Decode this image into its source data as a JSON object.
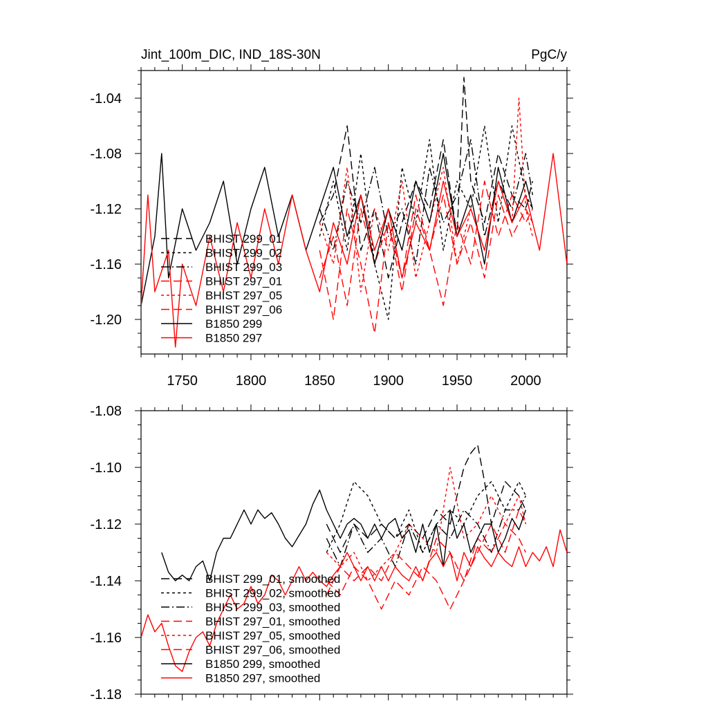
{
  "colors": {
    "black": "#000000",
    "red": "#ff0000",
    "background": "#ffffff"
  },
  "chart_data": [
    {
      "type": "line",
      "title": "Jint_100m_DIC, IND_18S-30N",
      "units_label": "PgC/y",
      "xlabel": "",
      "ylabel": "",
      "xlim": [
        1720,
        2030
      ],
      "ylim": [
        -1.225,
        -1.02
      ],
      "xticks": [
        1750,
        1800,
        1850,
        1900,
        1950,
        2000
      ],
      "xtick_labels": [
        "1750",
        "1800",
        "1850",
        "1900",
        "1950",
        "2000"
      ],
      "yticks": [
        -1.04,
        -1.08,
        -1.12,
        -1.16,
        -1.2
      ],
      "ytick_labels": [
        "-1.04",
        "-1.08",
        "-1.12",
        "-1.16",
        "-1.20"
      ],
      "legend_position": "bottom-left",
      "series": [
        {
          "name": "BHIST 299_01",
          "color": "#000000",
          "dash": "long-dash",
          "x": [
            1850,
            1860,
            1870,
            1880,
            1890,
            1900,
            1910,
            1920,
            1930,
            1940,
            1950,
            1955,
            1960,
            1970,
            1980,
            1990,
            2000,
            2005
          ],
          "y": [
            -1.13,
            -1.11,
            -1.06,
            -1.15,
            -1.12,
            -1.17,
            -1.13,
            -1.1,
            -1.12,
            -1.07,
            -1.14,
            -1.025,
            -1.1,
            -1.13,
            -1.08,
            -1.11,
            -1.12,
            -1.1
          ]
        },
        {
          "name": "BHIST 299_02",
          "color": "#000000",
          "dash": "short-dash",
          "x": [
            1850,
            1860,
            1870,
            1880,
            1890,
            1900,
            1910,
            1920,
            1930,
            1940,
            1950,
            1960,
            1970,
            1980,
            1990,
            2000,
            2005
          ],
          "y": [
            -1.14,
            -1.1,
            -1.15,
            -1.08,
            -1.16,
            -1.2,
            -1.09,
            -1.13,
            -1.07,
            -1.15,
            -1.1,
            -1.12,
            -1.06,
            -1.13,
            -1.06,
            -1.11,
            -1.12
          ]
        },
        {
          "name": "BHIST 299_03",
          "color": "#000000",
          "dash": "dash-dot",
          "x": [
            1850,
            1860,
            1870,
            1880,
            1890,
            1900,
            1910,
            1920,
            1930,
            1940,
            1950,
            1960,
            1970,
            1980,
            1990,
            2000,
            2005
          ],
          "y": [
            -1.12,
            -1.15,
            -1.1,
            -1.13,
            -1.09,
            -1.14,
            -1.12,
            -1.16,
            -1.09,
            -1.13,
            -1.11,
            -1.07,
            -1.14,
            -1.1,
            -1.12,
            -1.08,
            -1.11
          ]
        },
        {
          "name": "BHIST 297_01",
          "color": "#ff0000",
          "dash": "long-dash",
          "x": [
            1850,
            1860,
            1870,
            1880,
            1890,
            1900,
            1910,
            1920,
            1930,
            1940,
            1950,
            1960,
            1970,
            1980,
            1990,
            2000,
            2005
          ],
          "y": [
            -1.15,
            -1.2,
            -1.12,
            -1.16,
            -1.21,
            -1.13,
            -1.17,
            -1.11,
            -1.15,
            -1.19,
            -1.13,
            -1.16,
            -1.1,
            -1.14,
            -1.11,
            -1.13,
            -1.12
          ]
        },
        {
          "name": "BHIST 297_05",
          "color": "#ff0000",
          "dash": "short-dash",
          "x": [
            1850,
            1860,
            1870,
            1880,
            1890,
            1900,
            1910,
            1920,
            1930,
            1940,
            1950,
            1960,
            1970,
            1980,
            1990,
            1995,
            2000,
            2005
          ],
          "y": [
            -1.13,
            -1.16,
            -1.09,
            -1.18,
            -1.12,
            -1.15,
            -1.1,
            -1.17,
            -1.13,
            -1.09,
            -1.16,
            -1.12,
            -1.15,
            -1.1,
            -1.13,
            -1.04,
            -1.12,
            -1.14
          ]
        },
        {
          "name": "BHIST 297_06",
          "color": "#ff0000",
          "dash": "long-dash",
          "x": [
            1850,
            1860,
            1870,
            1880,
            1890,
            1900,
            1910,
            1920,
            1930,
            1940,
            1950,
            1960,
            1970,
            1980,
            1990,
            2000,
            2005
          ],
          "y": [
            -1.17,
            -1.14,
            -1.19,
            -1.12,
            -1.16,
            -1.13,
            -1.18,
            -1.12,
            -1.15,
            -1.11,
            -1.16,
            -1.13,
            -1.17,
            -1.11,
            -1.14,
            -1.12,
            -1.13
          ]
        },
        {
          "name": "B1850 299",
          "color": "#000000",
          "dash": "solid",
          "x": [
            1720,
            1730,
            1735,
            1740,
            1750,
            1760,
            1770,
            1780,
            1790,
            1800,
            1810,
            1820,
            1830,
            1840,
            1850,
            1860,
            1870,
            1880,
            1890,
            1900,
            1910,
            1920,
            1930,
            1940,
            1950,
            1960,
            1970,
            1980,
            1990,
            2000,
            2005
          ],
          "y": [
            -1.19,
            -1.14,
            -1.08,
            -1.17,
            -1.12,
            -1.15,
            -1.13,
            -1.1,
            -1.16,
            -1.12,
            -1.09,
            -1.14,
            -1.11,
            -1.15,
            -1.12,
            -1.09,
            -1.14,
            -1.11,
            -1.16,
            -1.12,
            -1.15,
            -1.1,
            -1.13,
            -1.08,
            -1.14,
            -1.11,
            -1.16,
            -1.09,
            -1.13,
            -1.1,
            -1.12
          ]
        },
        {
          "name": "B1850 297",
          "color": "#ff0000",
          "dash": "solid",
          "x": [
            1720,
            1725,
            1730,
            1740,
            1745,
            1750,
            1760,
            1770,
            1780,
            1790,
            1800,
            1810,
            1820,
            1830,
            1840,
            1850,
            1860,
            1870,
            1880,
            1890,
            1900,
            1910,
            1920,
            1930,
            1940,
            1950,
            1960,
            1970,
            1980,
            1990,
            2000,
            2010,
            2020,
            2025,
            2030
          ],
          "y": [
            -1.19,
            -1.11,
            -1.18,
            -1.15,
            -1.22,
            -1.16,
            -1.19,
            -1.14,
            -1.18,
            -1.13,
            -1.17,
            -1.12,
            -1.16,
            -1.11,
            -1.15,
            -1.18,
            -1.13,
            -1.16,
            -1.11,
            -1.15,
            -1.12,
            -1.17,
            -1.13,
            -1.15,
            -1.1,
            -1.14,
            -1.12,
            -1.15,
            -1.1,
            -1.13,
            -1.11,
            -1.15,
            -1.08,
            -1.12,
            -1.16
          ]
        }
      ]
    },
    {
      "type": "line",
      "title": "",
      "xlabel": "",
      "ylabel": "",
      "xlim": [
        1720,
        2030
      ],
      "ylim": [
        -1.18,
        -1.08
      ],
      "yticks": [
        -1.08,
        -1.1,
        -1.12,
        -1.14,
        -1.16,
        -1.18
      ],
      "ytick_labels": [
        "-1.08",
        "-1.10",
        "-1.12",
        "-1.14",
        "-1.16",
        "-1.18"
      ],
      "legend_position": "bottom-left",
      "series": [
        {
          "name": "BHIST 299_01, smoothed",
          "color": "#000000",
          "dash": "long-dash",
          "x": [
            1855,
            1865,
            1875,
            1885,
            1895,
            1905,
            1915,
            1925,
            1935,
            1945,
            1955,
            1960,
            1965,
            1970,
            1975,
            1985,
            1995,
            2000
          ],
          "y": [
            -1.12,
            -1.13,
            -1.12,
            -1.125,
            -1.12,
            -1.125,
            -1.12,
            -1.125,
            -1.115,
            -1.12,
            -1.1,
            -1.095,
            -1.092,
            -1.105,
            -1.12,
            -1.105,
            -1.11,
            -1.115
          ]
        },
        {
          "name": "BHIST 299_02, smoothed",
          "color": "#000000",
          "dash": "short-dash",
          "x": [
            1855,
            1865,
            1875,
            1885,
            1895,
            1905,
            1915,
            1925,
            1935,
            1945,
            1955,
            1965,
            1975,
            1985,
            1995,
            2000
          ],
          "y": [
            -1.13,
            -1.12,
            -1.105,
            -1.11,
            -1.12,
            -1.125,
            -1.115,
            -1.13,
            -1.12,
            -1.115,
            -1.12,
            -1.11,
            -1.105,
            -1.115,
            -1.105,
            -1.11
          ]
        },
        {
          "name": "BHIST 299_03, smoothed",
          "color": "#000000",
          "dash": "dash-dot",
          "x": [
            1855,
            1865,
            1875,
            1885,
            1895,
            1905,
            1915,
            1925,
            1935,
            1945,
            1955,
            1965,
            1975,
            1985,
            1995,
            2000
          ],
          "y": [
            -1.125,
            -1.135,
            -1.12,
            -1.13,
            -1.125,
            -1.135,
            -1.12,
            -1.13,
            -1.12,
            -1.125,
            -1.115,
            -1.12,
            -1.13,
            -1.115,
            -1.115,
            -1.11
          ]
        },
        {
          "name": "BHIST 297_01, smoothed",
          "color": "#ff0000",
          "dash": "long-dash",
          "x": [
            1855,
            1865,
            1875,
            1885,
            1895,
            1905,
            1915,
            1925,
            1935,
            1945,
            1955,
            1965,
            1975,
            1985,
            1995,
            2000
          ],
          "y": [
            -1.14,
            -1.145,
            -1.135,
            -1.14,
            -1.15,
            -1.14,
            -1.145,
            -1.135,
            -1.14,
            -1.15,
            -1.14,
            -1.13,
            -1.12,
            -1.13,
            -1.115,
            -1.12
          ]
        },
        {
          "name": "BHIST 297_05, smoothed",
          "color": "#ff0000",
          "dash": "short-dash",
          "x": [
            1855,
            1865,
            1875,
            1885,
            1895,
            1905,
            1915,
            1925,
            1935,
            1945,
            1955,
            1965,
            1975,
            1985,
            1995,
            2000
          ],
          "y": [
            -1.13,
            -1.135,
            -1.13,
            -1.14,
            -1.135,
            -1.13,
            -1.12,
            -1.125,
            -1.13,
            -1.1,
            -1.125,
            -1.12,
            -1.11,
            -1.12,
            -1.11,
            -1.12
          ]
        },
        {
          "name": "BHIST 297_06, smoothed",
          "color": "#ff0000",
          "dash": "long-dash",
          "x": [
            1855,
            1865,
            1875,
            1885,
            1895,
            1905,
            1915,
            1925,
            1935,
            1945,
            1955,
            1965,
            1975,
            1985,
            1995,
            2000
          ],
          "y": [
            -1.145,
            -1.135,
            -1.14,
            -1.135,
            -1.14,
            -1.13,
            -1.135,
            -1.14,
            -1.125,
            -1.13,
            -1.14,
            -1.125,
            -1.13,
            -1.12,
            -1.125,
            -1.13
          ]
        },
        {
          "name": "B1850 299, smoothed",
          "color": "#000000",
          "dash": "solid",
          "x": [
            1735,
            1740,
            1745,
            1750,
            1755,
            1760,
            1765,
            1770,
            1775,
            1780,
            1785,
            1790,
            1795,
            1800,
            1805,
            1810,
            1815,
            1820,
            1825,
            1830,
            1835,
            1840,
            1845,
            1850,
            1855,
            1860,
            1865,
            1870,
            1875,
            1880,
            1885,
            1890,
            1895,
            1900,
            1905,
            1910,
            1915,
            1920,
            1925,
            1930,
            1935,
            1940,
            1945,
            1950,
            1955,
            1960,
            1965,
            1970,
            1975,
            1980,
            1985,
            1990,
            1995,
            2000
          ],
          "y": [
            -1.13,
            -1.137,
            -1.14,
            -1.138,
            -1.14,
            -1.135,
            -1.133,
            -1.14,
            -1.13,
            -1.125,
            -1.125,
            -1.12,
            -1.115,
            -1.12,
            -1.115,
            -1.118,
            -1.116,
            -1.12,
            -1.125,
            -1.128,
            -1.124,
            -1.12,
            -1.113,
            -1.108,
            -1.115,
            -1.12,
            -1.125,
            -1.12,
            -1.118,
            -1.12,
            -1.125,
            -1.12,
            -1.125,
            -1.12,
            -1.118,
            -1.125,
            -1.122,
            -1.13,
            -1.12,
            -1.13,
            -1.12,
            -1.135,
            -1.115,
            -1.125,
            -1.12,
            -1.13,
            -1.125,
            -1.12,
            -1.12,
            -1.13,
            -1.125,
            -1.118,
            -1.122,
            -1.115
          ]
        },
        {
          "name": "B1850 297, smoothed",
          "color": "#ff0000",
          "dash": "solid",
          "x": [
            1720,
            1725,
            1730,
            1735,
            1740,
            1745,
            1750,
            1755,
            1760,
            1765,
            1770,
            1775,
            1780,
            1785,
            1790,
            1795,
            1800,
            1805,
            1810,
            1815,
            1820,
            1825,
            1830,
            1835,
            1840,
            1845,
            1850,
            1855,
            1860,
            1865,
            1870,
            1875,
            1880,
            1885,
            1890,
            1895,
            1900,
            1905,
            1910,
            1915,
            1920,
            1925,
            1930,
            1935,
            1940,
            1945,
            1950,
            1955,
            1960,
            1965,
            1970,
            1975,
            1980,
            1985,
            1990,
            1995,
            2000,
            2005,
            2010,
            2015,
            2020,
            2025,
            2030
          ],
          "y": [
            -1.16,
            -1.152,
            -1.158,
            -1.155,
            -1.163,
            -1.17,
            -1.172,
            -1.165,
            -1.16,
            -1.158,
            -1.163,
            -1.155,
            -1.15,
            -1.145,
            -1.15,
            -1.148,
            -1.142,
            -1.148,
            -1.145,
            -1.138,
            -1.14,
            -1.145,
            -1.14,
            -1.135,
            -1.14,
            -1.137,
            -1.14,
            -1.142,
            -1.138,
            -1.135,
            -1.13,
            -1.135,
            -1.14,
            -1.135,
            -1.14,
            -1.135,
            -1.14,
            -1.135,
            -1.138,
            -1.14,
            -1.135,
            -1.14,
            -1.133,
            -1.13,
            -1.135,
            -1.13,
            -1.14,
            -1.13,
            -1.135,
            -1.128,
            -1.132,
            -1.135,
            -1.13,
            -1.133,
            -1.135,
            -1.128,
            -1.135,
            -1.13,
            -1.133,
            -1.128,
            -1.135,
            -1.122,
            -1.13
          ]
        }
      ]
    }
  ]
}
